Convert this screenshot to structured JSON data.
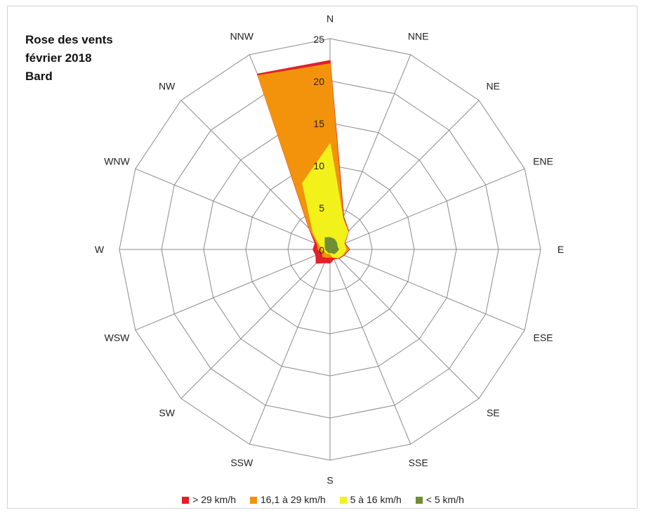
{
  "title_lines": [
    "Rose des vents",
    "février 2018",
    "Bard"
  ],
  "chart_data": {
    "type": "radar",
    "categories": [
      "N",
      "NNE",
      "NE",
      "ENE",
      "E",
      "ESE",
      "SE",
      "SSE",
      "S",
      "SSW",
      "SW",
      "WSW",
      "W",
      "WNW",
      "NW",
      "NNW"
    ],
    "rmax": 25,
    "ticks": [
      0,
      5,
      10,
      15,
      20,
      25
    ],
    "grid": true,
    "legend": "bottom",
    "series": [
      {
        "name": "> 29 km/h",
        "color": "#e0202a",
        "values": [
          22.4,
          4.2,
          3.1,
          1.9,
          2.3,
          1.8,
          1.5,
          1.2,
          1.6,
          1.7,
          2.3,
          1.8,
          2.0,
          1.9,
          3.5,
          22.5
        ]
      },
      {
        "name": "16,1 à 29 km/h",
        "color": "#f3930b",
        "values": [
          22.0,
          4.0,
          3.0,
          1.8,
          2.2,
          1.7,
          1.4,
          1.0,
          0.9,
          1.0,
          1.2,
          1.0,
          1.4,
          1.6,
          3.4,
          22.3
        ]
      },
      {
        "name": "5 à 16 km/h",
        "color": "#f2f21a",
        "values": [
          12.5,
          4.0,
          3.0,
          1.8,
          1.9,
          1.6,
          1.4,
          1.0,
          0.5,
          0.5,
          0.6,
          0.6,
          0.9,
          1.3,
          2.8,
          8.5
        ]
      },
      {
        "name": "< 5 km/h",
        "color": "#6f8f34",
        "values": [
          1.4,
          1.3,
          1.1,
          0.9,
          1.0,
          0.8,
          0.7,
          0.4,
          0.4,
          0.4,
          0.4,
          0.4,
          0.5,
          0.6,
          0.8,
          1.5
        ]
      }
    ]
  }
}
